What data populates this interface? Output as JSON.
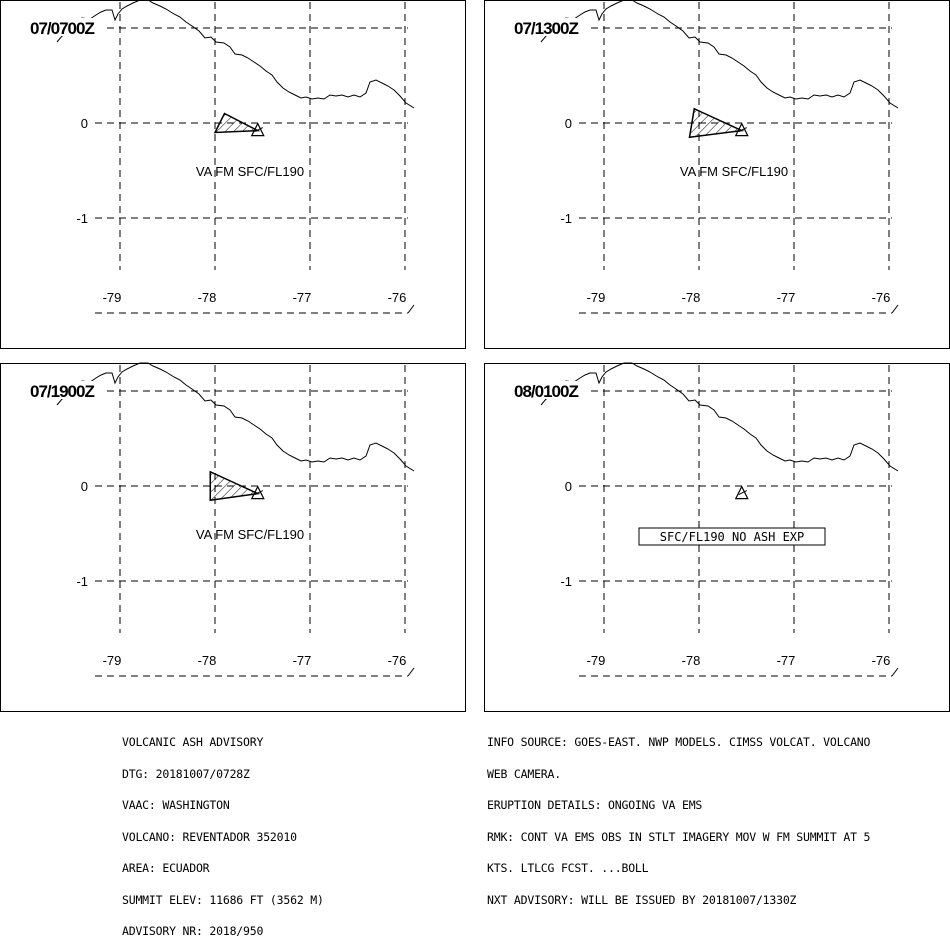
{
  "map": {
    "lat_ticks": [
      "0",
      "-1"
    ],
    "lon_ticks": [
      "-79",
      "-78",
      "-77",
      "-76"
    ]
  },
  "panels": [
    {
      "time": "07/0700Z",
      "label": "VA FM SFC/FL190",
      "ash_polygon": [
        [
          -77.9,
          0.1
        ],
        [
          -77.55,
          -0.08
        ],
        [
          -78.0,
          -0.1
        ]
      ]
    },
    {
      "time": "07/1300Z",
      "label": "VA FM SFC/FL190",
      "ash_polygon": [
        [
          -78.05,
          0.15
        ],
        [
          -77.55,
          -0.08
        ],
        [
          -78.1,
          -0.15
        ]
      ]
    },
    {
      "time": "07/1900Z",
      "label": "VA FM SFC/FL190",
      "ash_polygon": [
        [
          -78.05,
          0.15
        ],
        [
          -77.55,
          -0.08
        ],
        [
          -78.05,
          -0.15
        ]
      ]
    },
    {
      "time": "08/0100Z",
      "label": "SFC/FL190 NO ASH EXP",
      "ash_polygon": null
    }
  ],
  "advisory_left": [
    "VOLCANIC ASH ADVISORY",
    "DTG: 20181007/0728Z",
    "VAAC: WASHINGTON",
    "VOLCANO: REVENTADOR 352010",
    "AREA: ECUADOR",
    "SUMMIT ELEV: 11686 FT (3562 M)",
    "ADVISORY NR: 2018/950"
  ],
  "advisory_right": [
    "INFO SOURCE: GOES-EAST. NWP MODELS. CIMSS VOLCAT. VOLCANO",
    "WEB CAMERA.",
    "ERUPTION DETAILS: ONGOING VA EMS",
    "RMK: CONT VA EMS OBS IN STLT IMAGERY MOV W FM SUMMIT AT 5",
    "KTS. LTLCG FCST. ...BOLL",
    "NXT ADVISORY: WILL BE ISSUED BY 20181007/1330Z"
  ]
}
